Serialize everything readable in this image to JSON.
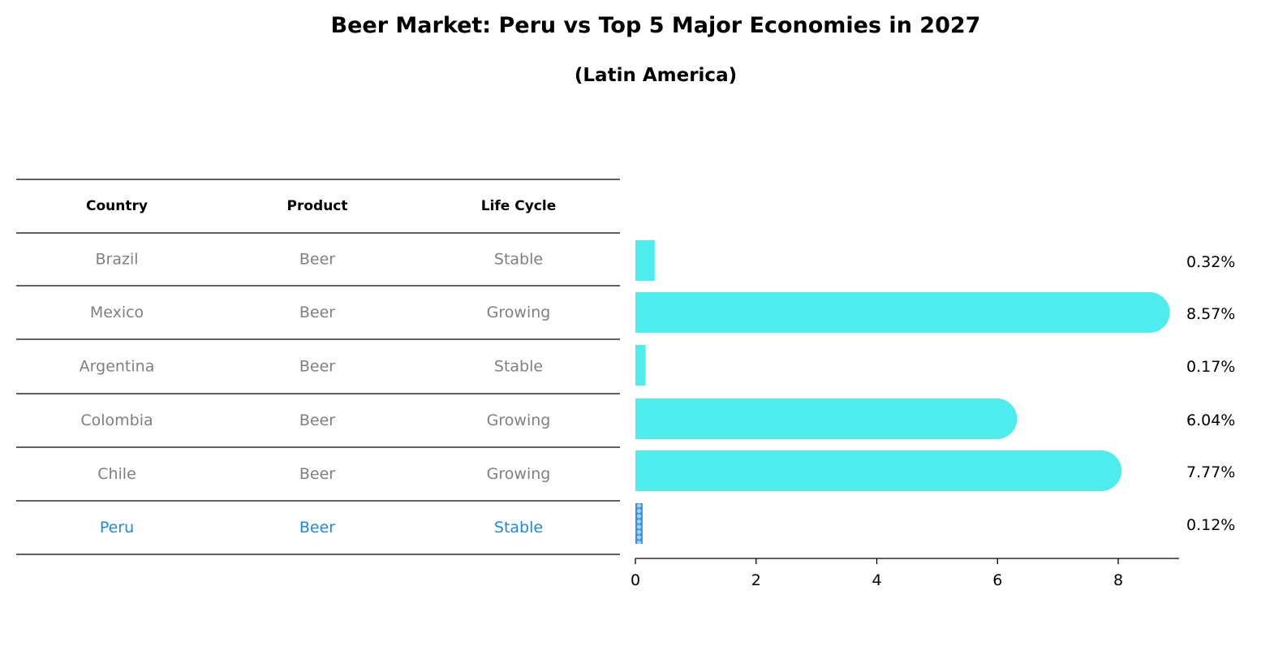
{
  "title": "Beer Market: Peru vs Top 5 Major Economies in 2027",
  "subtitle": "(Latin America)",
  "table": {
    "headers": [
      "Country",
      "Product",
      "Life Cycle"
    ],
    "rows": [
      [
        "Brazil",
        "Beer",
        "Stable"
      ],
      [
        "Mexico",
        "Beer",
        "Growing"
      ],
      [
        "Argentina",
        "Beer",
        "Stable"
      ],
      [
        "Colombia",
        "Beer",
        "Growing"
      ],
      [
        "Chile",
        "Beer",
        "Growing"
      ],
      [
        "Peru",
        "Beer",
        "Stable"
      ]
    ],
    "highlight_row": 5
  },
  "chart_data": {
    "type": "bar",
    "orientation": "horizontal",
    "title": "Beer Market: Peru vs Top 5 Major Economies in 2027",
    "subtitle": "(Latin America)",
    "categories": [
      "Brazil",
      "Mexico",
      "Argentina",
      "Colombia",
      "Chile",
      "Peru"
    ],
    "values": [
      0.32,
      8.57,
      0.17,
      6.04,
      7.77,
      0.12
    ],
    "value_labels": [
      "0.32%",
      "8.57%",
      "0.17%",
      "6.04%",
      "7.77%",
      "0.12%"
    ],
    "xlim": [
      0,
      9
    ],
    "xticks": [
      "0",
      "2",
      "4",
      "6",
      "8"
    ],
    "xlabel": "",
    "ylabel": "",
    "bar_color": "#4eecec",
    "highlight_color": "#1e88e5"
  }
}
